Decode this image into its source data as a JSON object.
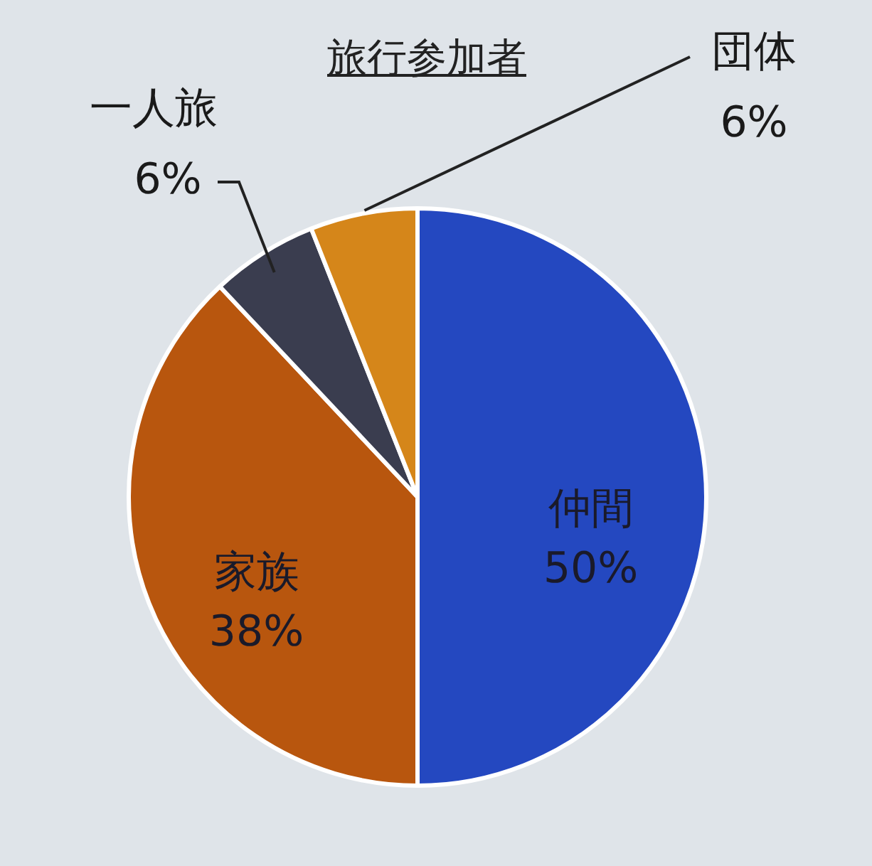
{
  "chart_data": {
    "type": "pie",
    "title": "旅行参加者",
    "categories": [
      "仲間",
      "家族",
      "一人旅",
      "団体"
    ],
    "values": [
      50,
      38,
      6,
      6
    ],
    "colors": [
      "#2448c0",
      "#b8560e",
      "#3a3d4f",
      "#d5861a"
    ],
    "value_labels": [
      "50%",
      "38%",
      "6%",
      "6%"
    ],
    "legend": false
  }
}
